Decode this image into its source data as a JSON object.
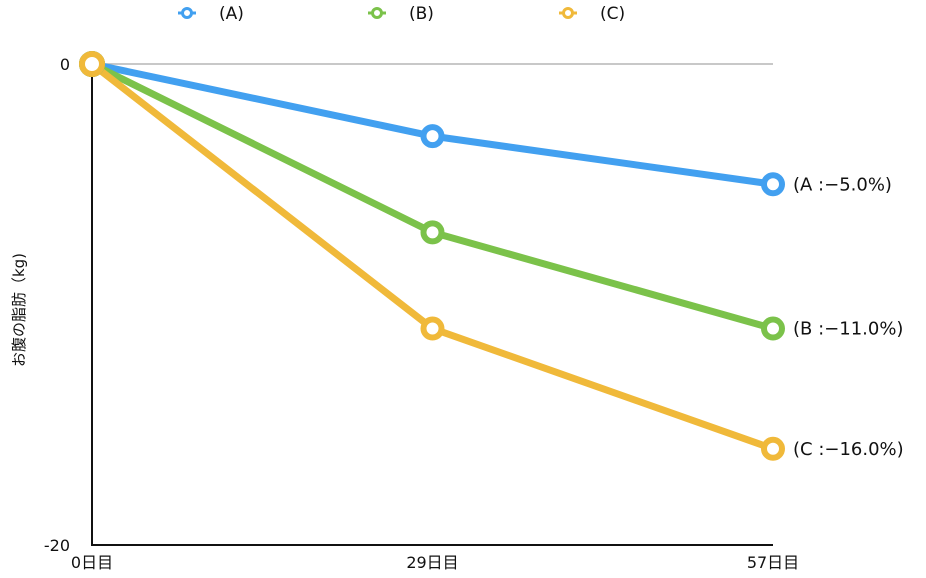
{
  "chart_data": {
    "type": "line",
    "title": "",
    "xlabel": "",
    "ylabel": "お腹の脂肪（kg)",
    "categories": [
      "0日目",
      "29日目",
      "57日目"
    ],
    "ylim": [
      -20,
      0
    ],
    "y_ticks": [
      "0",
      "-20"
    ],
    "grid": false,
    "legend_position": "top",
    "series": [
      {
        "name": "(A)",
        "color": "#42A0F0",
        "values": [
          0,
          -3,
          -5
        ],
        "end_label": "(A :−5.0%)"
      },
      {
        "name": "(B)",
        "color": "#7BC24A",
        "values": [
          0,
          -7,
          -11
        ],
        "end_label": "(B :−11.0%)"
      },
      {
        "name": "(C)",
        "color": "#F0B93A",
        "values": [
          0,
          -11,
          -16
        ],
        "end_label": "(C :−16.0%)"
      }
    ]
  }
}
